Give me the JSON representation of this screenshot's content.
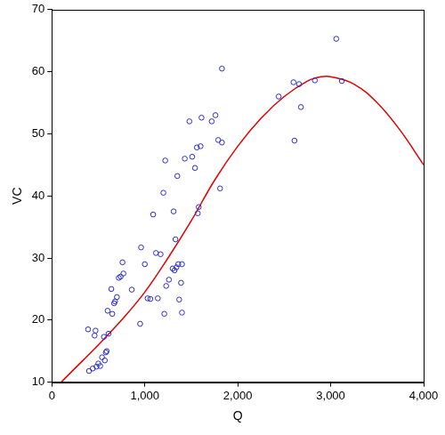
{
  "chart_data": {
    "type": "scatter",
    "x_label": "Q",
    "y_label": "VC",
    "xlim": [
      0,
      4000
    ],
    "xticks": [
      0,
      {
        "value": 1000,
        "label": "1,000"
      },
      {
        "value": 2000,
        "label": "2,000"
      },
      {
        "value": 3000,
        "label": "3,000"
      },
      {
        "value": 4000,
        "label": "4,000"
      }
    ],
    "ylim": [
      10,
      70
    ],
    "yticks": [
      10,
      20,
      30,
      40,
      50,
      60,
      70
    ],
    "grid": false,
    "series": [
      {
        "type": "scatter",
        "color": "#2a2ad0",
        "marker": "circle",
        "x": [
          390,
          400,
          440,
          460,
          470,
          480,
          500,
          520,
          540,
          560,
          570,
          580,
          590,
          600,
          610,
          640,
          650,
          670,
          680,
          700,
          720,
          740,
          760,
          770,
          860,
          950,
          960,
          1000,
          1030,
          1060,
          1090,
          1120,
          1140,
          1170,
          1200,
          1210,
          1220,
          1230,
          1260,
          1300,
          1310,
          1320,
          1330,
          1340,
          1350,
          1360,
          1370,
          1390,
          1400,
          1400,
          1430,
          1480,
          1510,
          1540,
          1560,
          1570,
          1580,
          1600,
          1610,
          1720,
          1760,
          1790,
          1810,
          1830,
          1830,
          2440,
          2600,
          2610,
          2660,
          2680,
          2830,
          3060,
          3120
        ],
        "values": [
          18.5,
          11.8,
          12.2,
          17.5,
          18.3,
          12.5,
          13,
          12.6,
          14,
          17.3,
          13.5,
          14.8,
          15,
          21.5,
          17.8,
          25,
          21,
          22.7,
          23,
          23.7,
          26.8,
          27,
          29.3,
          27.5,
          24.9,
          19.4,
          31.7,
          29,
          23.5,
          23.4,
          37,
          30.8,
          23.5,
          30.6,
          40.5,
          21,
          45.7,
          25.5,
          26.5,
          28.3,
          37.5,
          28,
          33,
          28.5,
          43.2,
          29,
          23.3,
          26,
          21.2,
          29,
          46,
          52,
          46.3,
          44.5,
          47.8,
          37.2,
          38.2,
          48,
          52.6,
          52,
          53,
          49,
          41.2,
          48.6,
          60.5,
          56,
          58.3,
          48.9,
          58,
          54.3,
          58.6,
          65.3,
          58.5
        ]
      },
      {
        "type": "line",
        "color": "#e00000",
        "line_style": "solid",
        "x": [
          100,
          200,
          500,
          750,
          1000,
          1250,
          1500,
          1750,
          2000,
          2250,
          2500,
          2750,
          2900,
          3000,
          3250,
          3500,
          3750,
          4000
        ],
        "values": [
          10,
          11.5,
          16,
          20,
          24.5,
          30,
          36,
          42.5,
          48,
          52.5,
          56,
          58.5,
          59.2,
          59.2,
          58,
          55,
          50.5,
          45
        ]
      }
    ]
  }
}
